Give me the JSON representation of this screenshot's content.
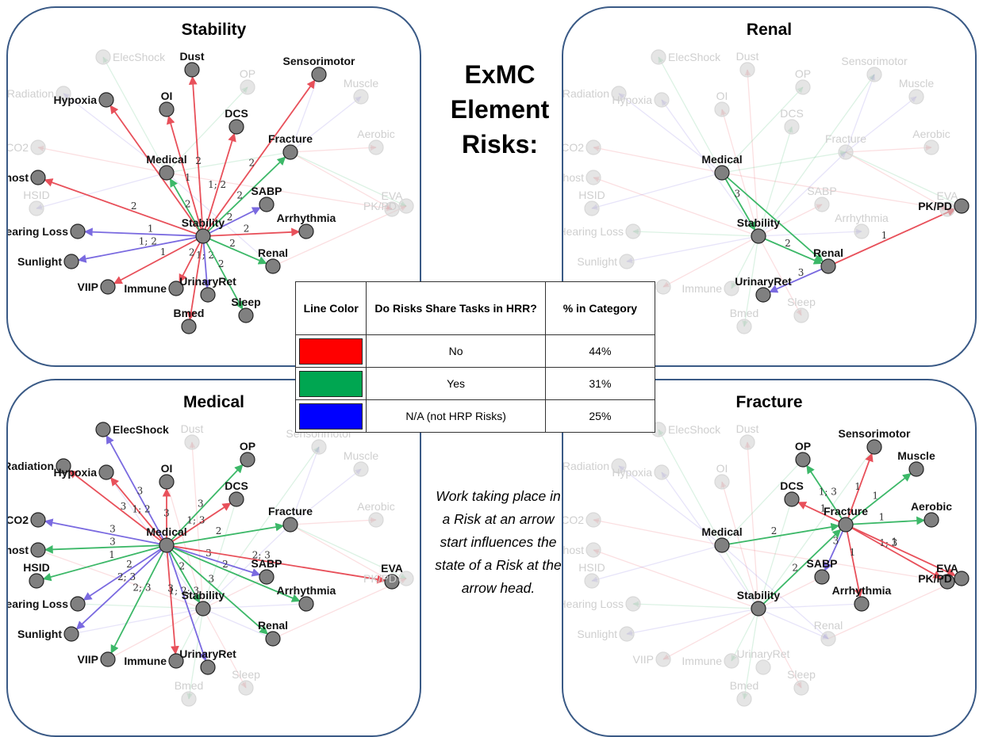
{
  "title_lines": [
    "ExMC",
    "Element",
    "Risks:"
  ],
  "panels": {
    "stability": {
      "title": "Stability"
    },
    "renal": {
      "title": "Renal"
    },
    "medical": {
      "title": "Medical"
    },
    "fracture": {
      "title": "Fracture"
    }
  },
  "legend": {
    "headers": [
      "Line Color",
      "Do Risks Share Tasks in HRR?",
      "% in Category"
    ],
    "rows": [
      {
        "color": "#ff0000",
        "label": "No",
        "percent": "44%"
      },
      {
        "color": "#00a651",
        "label": "Yes",
        "percent": "31%"
      },
      {
        "color": "#0000ff",
        "label": "N/A (not HRP Risks)",
        "percent": "25%"
      }
    ]
  },
  "note": "Work taking place in a Risk at an arrow start influences the state of a Risk at the arrow head.",
  "edge_colors": {
    "red": "#e8505a",
    "green": "#3cb868",
    "blue": "#7a6ae0"
  },
  "node_labels": {
    "ElecShock": "ElecShock",
    "Dust": "Dust",
    "Sensorimotor": "Sensorimotor",
    "Radiation": "Radiation",
    "Hypoxia": "Hypoxia",
    "OP": "OP",
    "Muscle": "Muscle",
    "OI": "OI",
    "DCS": "DCS",
    "CO2": "CO2",
    "Fracture": "Fracture",
    "Aerobic": "Aerobic",
    "Microhost": "Microhost",
    "Medical": "Medical",
    "HSID": "HSID",
    "SABP": "SABP",
    "EVA": "EVA",
    "PKPD": "PK/PD",
    "HearingLoss": "Hearing Loss",
    "Stability": "Stability",
    "Arrhythmia": "Arrhythmia",
    "Sunlight": "Sunlight",
    "Renal": "Renal",
    "VIIP": "VIIP",
    "Immune": "Immune",
    "UrinaryRet": "UrinaryRet",
    "Sleep": "Sleep",
    "Bmed": "Bmed"
  },
  "graphs": {
    "stability": {
      "hub": "Stability",
      "edges": [
        {
          "from": "Stability",
          "to": "Dust",
          "color": "red",
          "label": "2"
        },
        {
          "from": "Stability",
          "to": "Sensorimotor",
          "color": "red",
          "label": "2"
        },
        {
          "from": "Stability",
          "to": "Hypoxia",
          "color": "red",
          "label": "2"
        },
        {
          "from": "Stability",
          "to": "OI",
          "color": "red",
          "label": "1"
        },
        {
          "from": "Stability",
          "to": "DCS",
          "color": "red",
          "label": "1; 2"
        },
        {
          "from": "Stability",
          "to": "Fracture",
          "color": "green",
          "label": "2"
        },
        {
          "from": "Stability",
          "to": "Medical",
          "color": "green",
          "label": "2"
        },
        {
          "from": "Stability",
          "to": "Microhost",
          "color": "red",
          "label": "2"
        },
        {
          "from": "Stability",
          "to": "SABP",
          "color": "blue",
          "label": "2"
        },
        {
          "from": "Stability",
          "to": "Arrhythmia",
          "color": "red",
          "label": "2"
        },
        {
          "from": "Stability",
          "to": "HearingLoss",
          "color": "blue",
          "label": "1"
        },
        {
          "from": "Stability",
          "to": "Sunlight",
          "color": "blue",
          "label": "1; 2"
        },
        {
          "from": "Stability",
          "to": "VIIP",
          "color": "red",
          "label": "1"
        },
        {
          "from": "Stability",
          "to": "Immune",
          "color": "red",
          "label": "2"
        },
        {
          "from": "Stability",
          "to": "UrinaryRet",
          "color": "blue",
          "label": "1; 2"
        },
        {
          "from": "Stability",
          "to": "Renal",
          "color": "green",
          "label": "2"
        },
        {
          "from": "Stability",
          "to": "Sleep",
          "color": "green",
          "label": "2"
        },
        {
          "from": "Stability",
          "to": "Bmed",
          "color": "red",
          "label": ""
        }
      ],
      "active": [
        "Stability",
        "Dust",
        "Sensorimotor",
        "Hypoxia",
        "OI",
        "DCS",
        "Fracture",
        "Medical",
        "Microhost",
        "SABP",
        "Arrhythmia",
        "HearingLoss",
        "Sunlight",
        "VIIP",
        "Immune",
        "UrinaryRet",
        "Renal",
        "Sleep",
        "Bmed"
      ]
    },
    "renal": {
      "hub": "Renal",
      "edges": [
        {
          "from": "Medical",
          "to": "Renal",
          "color": "green",
          "label": ""
        },
        {
          "from": "Stability",
          "to": "Renal",
          "color": "green",
          "label": "2"
        },
        {
          "from": "Medical",
          "to": "Stability",
          "color": "green",
          "label": "3"
        },
        {
          "from": "Renal",
          "to": "PKPD",
          "color": "red",
          "label": "1"
        },
        {
          "from": "Renal",
          "to": "UrinaryRet",
          "color": "blue",
          "label": "3"
        }
      ],
      "active": [
        "Medical",
        "Stability",
        "Renal",
        "UrinaryRet",
        "PKPD"
      ]
    },
    "medical": {
      "hub": "Medical",
      "edges": [
        {
          "from": "Medical",
          "to": "ElecShock",
          "color": "blue",
          "label": "3"
        },
        {
          "from": "Medical",
          "to": "Radiation",
          "color": "red",
          "label": "3"
        },
        {
          "from": "Medical",
          "to": "Hypoxia",
          "color": "red",
          "label": "1; 2"
        },
        {
          "from": "Medical",
          "to": "OI",
          "color": "red",
          "label": "3"
        },
        {
          "from": "Medical",
          "to": "OP",
          "color": "green",
          "label": "3"
        },
        {
          "from": "Medical",
          "to": "DCS",
          "color": "red",
          "label": "1; 3"
        },
        {
          "from": "Medical",
          "to": "Fracture",
          "color": "green",
          "label": "2"
        },
        {
          "from": "Medical",
          "to": "CO2",
          "color": "blue",
          "label": "3"
        },
        {
          "from": "Medical",
          "to": "Microhost",
          "color": "green",
          "label": "3"
        },
        {
          "from": "Medical",
          "to": "HSID",
          "color": "green",
          "label": "1"
        },
        {
          "from": "Medical",
          "to": "HearingLoss",
          "color": "blue",
          "label": "2"
        },
        {
          "from": "Medical",
          "to": "SABP",
          "color": "blue",
          "label": "3"
        },
        {
          "from": "Medical",
          "to": "EVA",
          "color": "red",
          "label": "2; 3"
        },
        {
          "from": "Medical",
          "to": "Arrhythmia",
          "color": "green",
          "label": "2"
        },
        {
          "from": "Medical",
          "to": "Stability",
          "color": "green",
          "label": "2"
        },
        {
          "from": "Medical",
          "to": "Renal",
          "color": "green",
          "label": "3"
        },
        {
          "from": "Medical",
          "to": "Sunlight",
          "color": "blue",
          "label": "2; 3"
        },
        {
          "from": "Medical",
          "to": "VIIP",
          "color": "green",
          "label": "2; 3"
        },
        {
          "from": "Medical",
          "to": "Immune",
          "color": "red",
          "label": "3"
        },
        {
          "from": "Medical",
          "to": "UrinaryRet",
          "color": "blue",
          "label": "1; 2; 3"
        }
      ],
      "active": [
        "Medical",
        "ElecShock",
        "Radiation",
        "Hypoxia",
        "OI",
        "OP",
        "DCS",
        "Fracture",
        "CO2",
        "Microhost",
        "HSID",
        "HearingLoss",
        "SABP",
        "EVA",
        "Arrhythmia",
        "Stability",
        "Renal",
        "Sunlight",
        "VIIP",
        "Immune",
        "UrinaryRet"
      ]
    },
    "fracture": {
      "hub": "Fracture",
      "edges": [
        {
          "from": "Fracture",
          "to": "OP",
          "color": "green",
          "label": "1; 3"
        },
        {
          "from": "Fracture",
          "to": "Sensorimotor",
          "color": "red",
          "label": "1"
        },
        {
          "from": "Fracture",
          "to": "Muscle",
          "color": "green",
          "label": "1"
        },
        {
          "from": "Fracture",
          "to": "Aerobic",
          "color": "green",
          "label": "1"
        },
        {
          "from": "Fracture",
          "to": "DCS",
          "color": "red",
          "label": "1"
        },
        {
          "from": "Medical",
          "to": "Fracture",
          "color": "green",
          "label": "2"
        },
        {
          "from": "Fracture",
          "to": "SABP",
          "color": "blue",
          "label": "3"
        },
        {
          "from": "Stability",
          "to": "Fracture",
          "color": "green",
          "label": "2"
        },
        {
          "from": "Fracture",
          "to": "Arrhythmia",
          "color": "red",
          "label": "1"
        },
        {
          "from": "Fracture",
          "to": "EVA",
          "color": "red",
          "label": "1; 3"
        },
        {
          "from": "Fracture",
          "to": "PKPD",
          "color": "red",
          "label": "1"
        }
      ],
      "active": [
        "Fracture",
        "OP",
        "Sensorimotor",
        "Muscle",
        "Aerobic",
        "DCS",
        "Medical",
        "SABP",
        "Stability",
        "Arrhythmia",
        "EVA",
        "PKPD"
      ]
    }
  }
}
